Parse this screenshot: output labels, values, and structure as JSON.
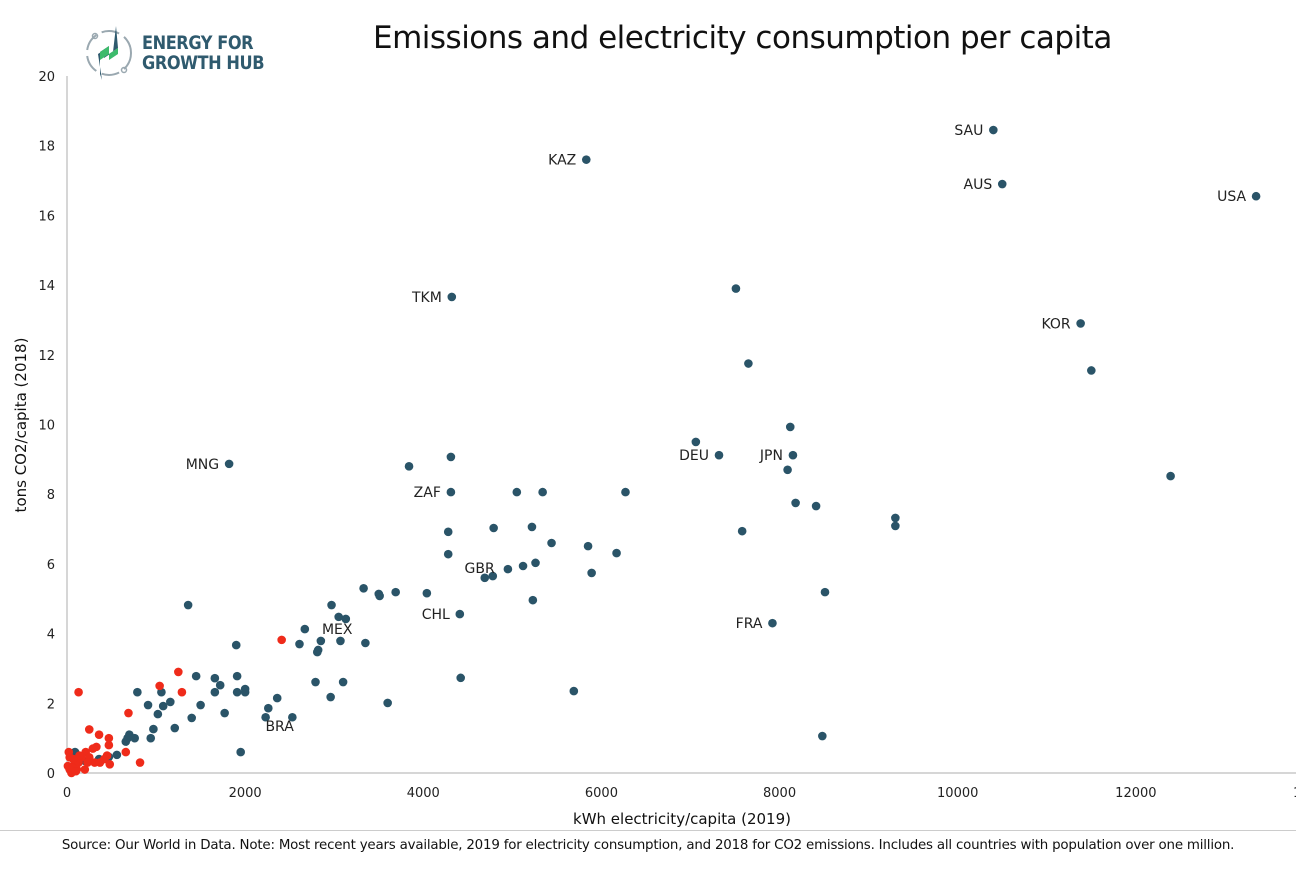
{
  "logo": {
    "line1": "ENERGY FOR",
    "line2": "GROWTH HUB"
  },
  "source": "Source: Our World in Data. Note: Most recent years available, 2019 for electricity consumption, and 2018 for CO2 emissions. Includes all countries with population over one million.",
  "colors": {
    "blue": "#2a5468",
    "red": "#ef2b1a",
    "axis": "#c8c8c8",
    "logo_green": "#3dbb6c"
  },
  "chart_data": {
    "type": "scatter",
    "title": "Emissions and electricity consumption per capita",
    "xlabel": "kWh electricity/capita (2019)",
    "ylabel": "tons CO2/capita (2018)",
    "xlim": [
      0,
      14000
    ],
    "ylim": [
      0,
      20
    ],
    "xticks": [
      "0",
      "2000",
      "4000",
      "6000",
      "8000",
      "10000",
      "12000",
      "1"
    ],
    "yticks": [
      "0",
      "2",
      "4",
      "6",
      "8",
      "10",
      "12",
      "14",
      "16",
      "18",
      "20"
    ],
    "grid": false,
    "labels": [
      {
        "text": "SAU",
        "x": 10400,
        "y": 18.45,
        "pos": "left"
      },
      {
        "text": "KAZ",
        "x": 5830,
        "y": 17.6,
        "pos": "left"
      },
      {
        "text": "AUS",
        "x": 10500,
        "y": 16.9,
        "pos": "left"
      },
      {
        "text": "USA",
        "x": 13350,
        "y": 16.55,
        "pos": "left"
      },
      {
        "text": "TKM",
        "x": 4320,
        "y": 13.66,
        "pos": "left"
      },
      {
        "text": "KOR",
        "x": 11380,
        "y": 12.9,
        "pos": "left"
      },
      {
        "text": "DEU",
        "x": 7320,
        "y": 9.12,
        "pos": "left"
      },
      {
        "text": "JPN",
        "x": 8150,
        "y": 9.12,
        "pos": "left"
      },
      {
        "text": "MNG",
        "x": 1820,
        "y": 8.87,
        "pos": "left"
      },
      {
        "text": "ZAF",
        "x": 4310,
        "y": 8.06,
        "pos": "left"
      },
      {
        "text": "GBR",
        "x": 4690,
        "y": 5.6,
        "pos": "above-left"
      },
      {
        "text": "CHL",
        "x": 4410,
        "y": 4.56,
        "pos": "left"
      },
      {
        "text": "FRA",
        "x": 7920,
        "y": 4.3,
        "pos": "left"
      },
      {
        "text": "MEX",
        "x": 2750,
        "y": 4.13,
        "pos": "right"
      },
      {
        "text": "BRA",
        "x": 2230,
        "y": 1.6,
        "pos": "below"
      }
    ],
    "series": [
      {
        "name": "countries",
        "color": "#2a5468",
        "points": [
          [
            10400,
            18.45
          ],
          [
            5830,
            17.6
          ],
          [
            10500,
            16.9
          ],
          [
            13350,
            16.55
          ],
          [
            4320,
            13.66
          ],
          [
            7510,
            13.9
          ],
          [
            11380,
            12.9
          ],
          [
            7650,
            11.75
          ],
          [
            11500,
            11.55
          ],
          [
            8120,
            9.93
          ],
          [
            7060,
            9.5
          ],
          [
            7320,
            9.12
          ],
          [
            8150,
            9.12
          ],
          [
            1820,
            8.87
          ],
          [
            3840,
            8.8
          ],
          [
            4310,
            9.07
          ],
          [
            8090,
            8.7
          ],
          [
            4310,
            8.06
          ],
          [
            5050,
            8.06
          ],
          [
            5340,
            8.06
          ],
          [
            6270,
            8.06
          ],
          [
            12390,
            8.52
          ],
          [
            8180,
            7.75
          ],
          [
            8410,
            7.66
          ],
          [
            9300,
            7.32
          ],
          [
            9300,
            7.09
          ],
          [
            4280,
            6.92
          ],
          [
            4790,
            7.03
          ],
          [
            5220,
            7.06
          ],
          [
            7580,
            6.94
          ],
          [
            5440,
            6.6
          ],
          [
            5850,
            6.51
          ],
          [
            6170,
            6.31
          ],
          [
            4280,
            6.28
          ],
          [
            5260,
            6.03
          ],
          [
            5120,
            5.94
          ],
          [
            4950,
            5.85
          ],
          [
            4690,
            5.6
          ],
          [
            4780,
            5.65
          ],
          [
            5890,
            5.74
          ],
          [
            3330,
            5.3
          ],
          [
            3500,
            5.14
          ],
          [
            3510,
            5.08
          ],
          [
            3690,
            5.19
          ],
          [
            4040,
            5.16
          ],
          [
            8510,
            5.19
          ],
          [
            5230,
            4.96
          ],
          [
            4410,
            4.56
          ],
          [
            7920,
            4.3
          ],
          [
            1360,
            4.82
          ],
          [
            2970,
            4.82
          ],
          [
            3050,
            4.48
          ],
          [
            3130,
            4.42
          ],
          [
            2670,
            4.13
          ],
          [
            1900,
            3.67
          ],
          [
            2610,
            3.7
          ],
          [
            2850,
            3.79
          ],
          [
            3070,
            3.79
          ],
          [
            3350,
            3.73
          ],
          [
            2820,
            3.53
          ],
          [
            2810,
            3.47
          ],
          [
            1450,
            2.78
          ],
          [
            1910,
            2.78
          ],
          [
            1660,
            2.72
          ],
          [
            1720,
            2.52
          ],
          [
            1660,
            2.32
          ],
          [
            1910,
            2.32
          ],
          [
            2000,
            2.41
          ],
          [
            2000,
            2.32
          ],
          [
            1060,
            2.32
          ],
          [
            790,
            2.32
          ],
          [
            2790,
            2.61
          ],
          [
            3100,
            2.61
          ],
          [
            4420,
            2.73
          ],
          [
            5690,
            2.35
          ],
          [
            910,
            1.95
          ],
          [
            1500,
            1.95
          ],
          [
            1160,
            2.04
          ],
          [
            1080,
            1.92
          ],
          [
            1020,
            1.69
          ],
          [
            1400,
            1.58
          ],
          [
            1770,
            1.72
          ],
          [
            2260,
            1.86
          ],
          [
            2360,
            2.15
          ],
          [
            2960,
            2.18
          ],
          [
            3600,
            2.01
          ],
          [
            2230,
            1.6
          ],
          [
            2530,
            1.6
          ],
          [
            1210,
            1.29
          ],
          [
            970,
            1.26
          ],
          [
            940,
            1.0
          ],
          [
            8480,
            1.06
          ],
          [
            1950,
            0.6
          ],
          [
            700,
            1.1
          ],
          [
            680,
            1.0
          ],
          [
            660,
            0.9
          ],
          [
            760,
            1.0
          ],
          [
            560,
            0.52
          ],
          [
            470,
            0.46
          ],
          [
            90,
            0.6
          ],
          [
            360,
            0.4
          ],
          [
            200,
            0.35
          ]
        ]
      },
      {
        "name": "highlighted",
        "color": "#ef2b1a",
        "points": [
          [
            130,
            2.32
          ],
          [
            1040,
            2.5
          ],
          [
            1250,
            2.9
          ],
          [
            1290,
            2.32
          ],
          [
            2410,
            3.82
          ],
          [
            690,
            1.72
          ],
          [
            250,
            1.25
          ],
          [
            360,
            1.1
          ],
          [
            470,
            1.0
          ],
          [
            470,
            0.8
          ],
          [
            450,
            0.5
          ],
          [
            660,
            0.6
          ],
          [
            820,
            0.3
          ],
          [
            330,
            0.75
          ],
          [
            290,
            0.7
          ],
          [
            210,
            0.6
          ],
          [
            160,
            0.45
          ],
          [
            30,
            0.1
          ],
          [
            10,
            0.2
          ],
          [
            50,
            0.0
          ],
          [
            90,
            0.25
          ],
          [
            130,
            0.3
          ],
          [
            110,
            0.1
          ],
          [
            30,
            0.45
          ],
          [
            20,
            0.6
          ],
          [
            140,
            0.5
          ],
          [
            250,
            0.45
          ],
          [
            310,
            0.3
          ],
          [
            370,
            0.3
          ],
          [
            420,
            0.4
          ],
          [
            480,
            0.25
          ],
          [
            200,
            0.1
          ],
          [
            230,
            0.3
          ],
          [
            70,
            0.4
          ],
          [
            60,
            0.15
          ],
          [
            100,
            0.05
          ]
        ]
      }
    ]
  }
}
